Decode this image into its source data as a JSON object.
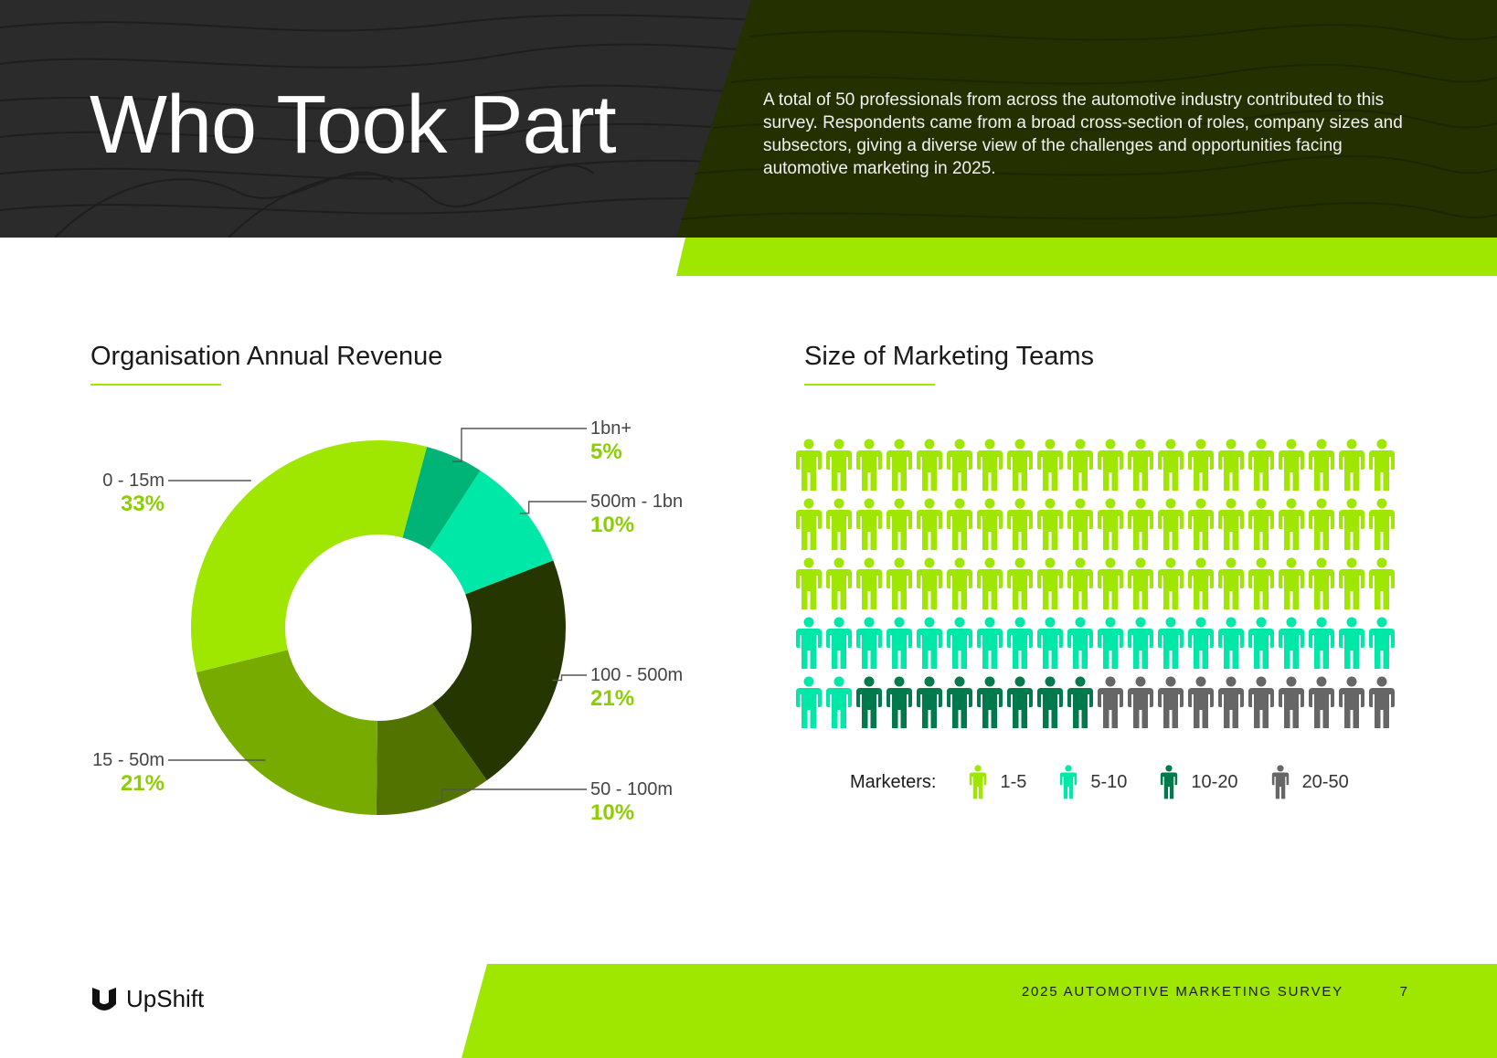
{
  "header": {
    "title": "Who Took Part",
    "intro": "A total of 50 professionals from across the automotive industry contributed to this survey. Respondents came from a broad cross-section of roles, company sizes and subsectors, giving a diverse view of the challenges and opportunities facing automotive marketing in 2025."
  },
  "colors": {
    "brand_green": "#9fe600",
    "header_dark": "#2b2b2b",
    "header_green_dark": "#243000",
    "percent_text": "#8ccf00"
  },
  "sections": {
    "revenue_title": "Organisation Annual Revenue",
    "teams_title": "Size of Marketing Teams"
  },
  "chart_data": [
    {
      "type": "pie",
      "title": "Organisation Annual Revenue",
      "donut": true,
      "slices": [
        {
          "label": "1bn+",
          "value": 5,
          "display": "5%",
          "color": "#00b377"
        },
        {
          "label": "500m - 1bn",
          "value": 10,
          "display": "10%",
          "color": "#00e8a8"
        },
        {
          "label": "100 - 500m",
          "value": 21,
          "display": "21%",
          "color": "#263600"
        },
        {
          "label": "50 - 100m",
          "value": 10,
          "display": "10%",
          "color": "#527300"
        },
        {
          "label": "15 - 50m",
          "value": 21,
          "display": "21%",
          "color": "#77ab00"
        },
        {
          "label": "0 - 15m",
          "value": 33,
          "display": "33%",
          "color": "#9fe600"
        }
      ]
    },
    {
      "type": "table",
      "title": "Size of Marketing Teams",
      "legend_title": "Marketers:",
      "grid": {
        "rows": 5,
        "columns": 20
      },
      "categories": [
        {
          "label": "1-5",
          "count": 60,
          "color": "#9fe600"
        },
        {
          "label": "5-10",
          "count": 22,
          "color": "#00e8a8"
        },
        {
          "label": "10-20",
          "count": 8,
          "color": "#007a4d"
        },
        {
          "label": "20-50",
          "count": 10,
          "color": "#666666"
        }
      ]
    }
  ],
  "footer": {
    "brand": "UpShift",
    "survey_name": "2025 AUTOMOTIVE MARKETING SURVEY",
    "page_number": "7"
  }
}
